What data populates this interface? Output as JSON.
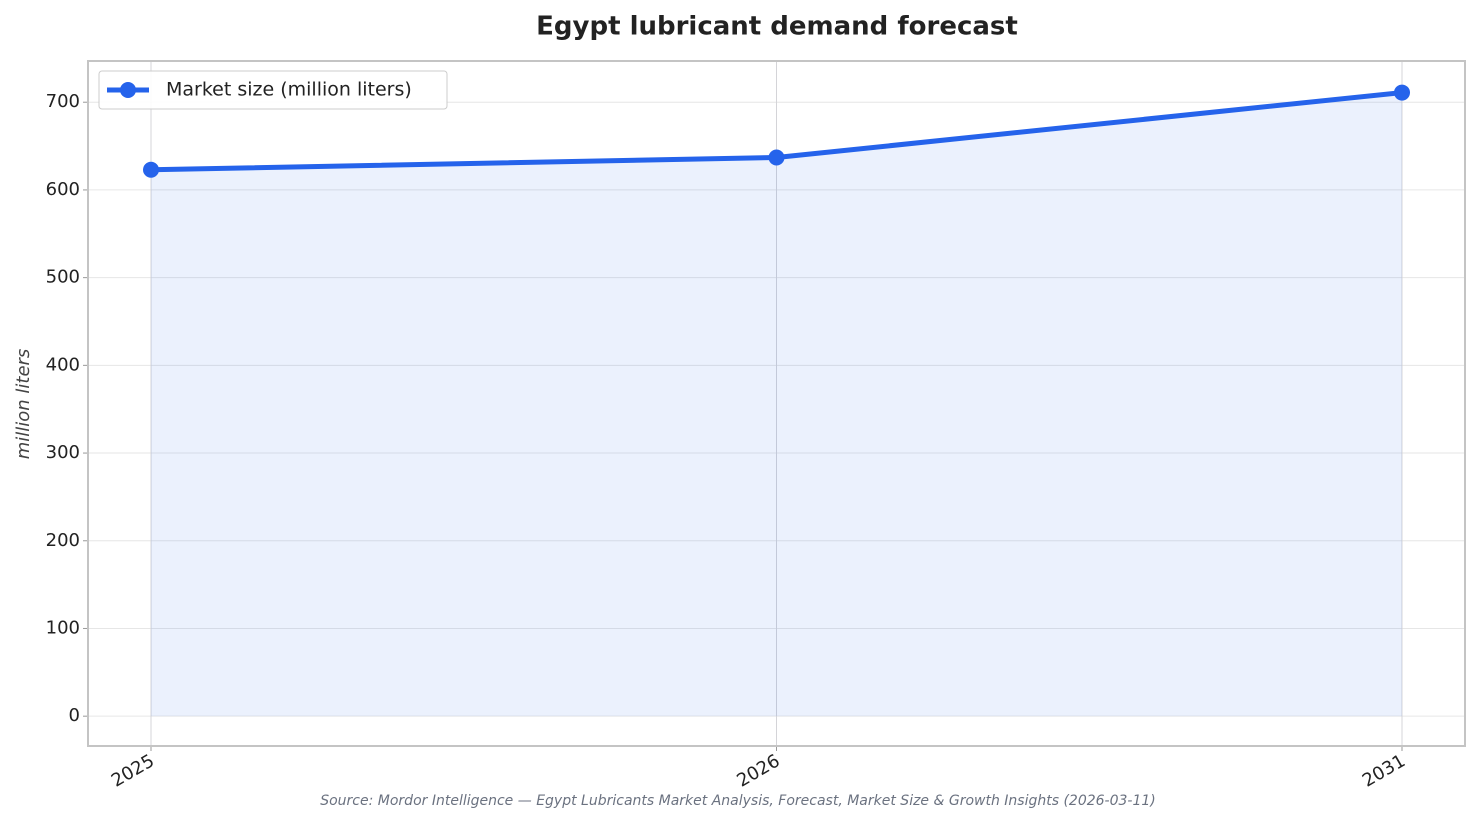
{
  "chart_data": {
    "type": "line",
    "title": "Egypt lubricant demand forecast",
    "ylabel": "million liters",
    "source": "Source: Mordor Intelligence — Egypt Lubricants Market Analysis, Forecast, Market Size & Growth Insights (2026-03-11)",
    "categories": [
      "2025",
      "2026",
      "2031"
    ],
    "series": [
      {
        "name": "Market size (million liters)",
        "color": "#2563eb",
        "values": [
          623,
          637,
          711
        ]
      }
    ],
    "area": true,
    "ylim": [
      -34,
      747
    ],
    "yticks": [
      0,
      100,
      200,
      300,
      400,
      500,
      600,
      700
    ],
    "grid": true,
    "legend": "upper left"
  }
}
